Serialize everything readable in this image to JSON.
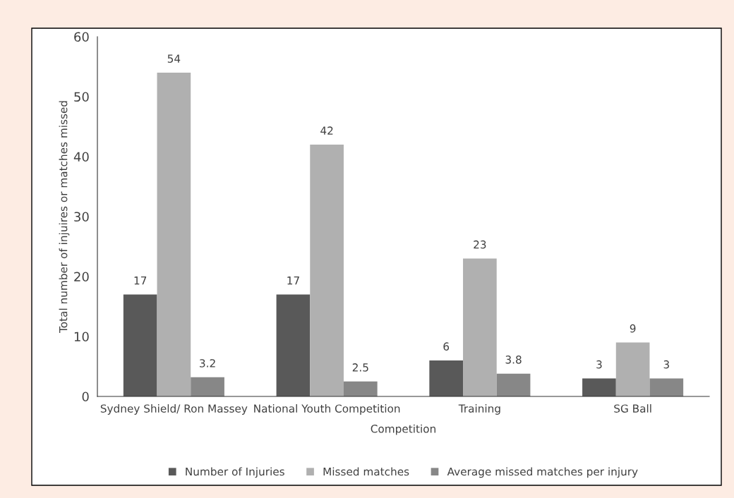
{
  "chart_data": {
    "type": "bar",
    "xlabel": "Competition",
    "ylabel": "Total number of injuires or matches missed",
    "categories": [
      "Sydney Shield/ Ron Massey",
      "National Youth Competition",
      "Training",
      "SG Ball"
    ],
    "series": [
      {
        "name": "Number of Injuries",
        "color": "#595959",
        "values": [
          17,
          17,
          6,
          3
        ]
      },
      {
        "name": "Missed matches",
        "color": "#b0b0b0",
        "values": [
          54,
          42,
          23,
          9
        ]
      },
      {
        "name": "Average missed matches per injury",
        "color": "#878787",
        "values": [
          3.2,
          2.5,
          3.8,
          3
        ]
      }
    ],
    "ylim": [
      0,
      60
    ],
    "yticks": [
      0,
      10,
      20,
      30,
      40,
      50,
      60
    ],
    "data_labels": true,
    "grid": false,
    "legend": "bottom"
  }
}
